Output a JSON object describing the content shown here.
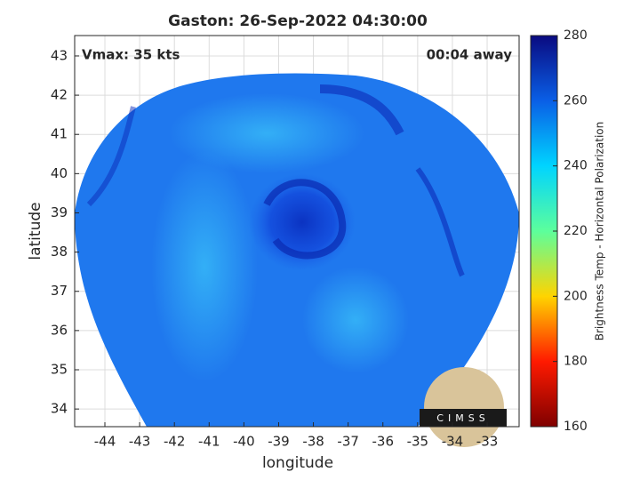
{
  "chart_data": {
    "type": "map",
    "title": "Gaston: 26-Sep-2022 04:30:00",
    "annotations": [
      "Vmax: 35 kts",
      "00:04 away"
    ],
    "x_label": "longitude",
    "y_label": "latitude",
    "xlim": [
      -44.87,
      -32.08
    ],
    "ylim": [
      33.55,
      43.52
    ],
    "xticks": [
      -44,
      -43,
      -42,
      -41,
      -40,
      -39,
      -38,
      -37,
      -36,
      -35,
      -34,
      -33
    ],
    "yticks": [
      34,
      35,
      36,
      37,
      38,
      39,
      40,
      41,
      42,
      43
    ],
    "grid": true,
    "colorbar": {
      "label": "Brightness Temp - Horizontal Polarization",
      "lim": [
        160,
        280
      ],
      "ticks": [
        160,
        180,
        200,
        220,
        240,
        260,
        280
      ],
      "colormap": [
        "#7f0000",
        "#ff1a00",
        "#ffd400",
        "#5cff9c",
        "#00d4ff",
        "#0a5fe6",
        "#0a0a80"
      ]
    },
    "logo_text": "CIMSS"
  }
}
